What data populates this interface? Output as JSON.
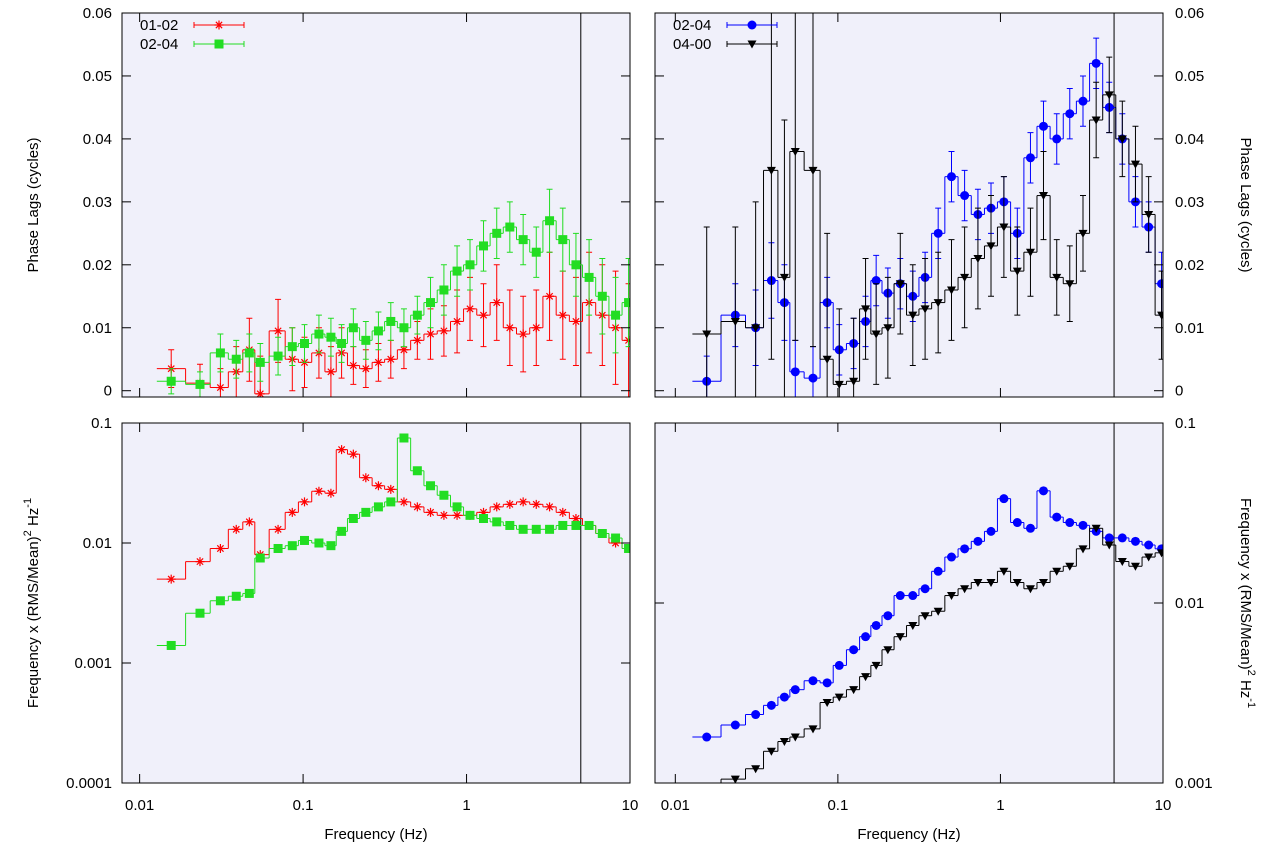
{
  "chart_data": [
    {
      "type": "line",
      "log_x": true,
      "log_y": false,
      "yaxis_side": "left",
      "legend": "upper left",
      "show_xtick_labels": false,
      "vline": 5,
      "ylabel": [
        "Phase Lags (cycles)"
      ],
      "xlim": [
        0.0078,
        10
      ],
      "ylim": [
        -0.001,
        0.06
      ],
      "xticks": [
        0.01,
        0.1,
        1,
        10
      ],
      "yticks": [
        0,
        0.01,
        0.02,
        0.03,
        0.04,
        0.05,
        0.06
      ],
      "x": [
        0.0156,
        0.0234,
        0.0312,
        0.039,
        0.0469,
        0.0547,
        0.0703,
        0.0859,
        0.102,
        0.125,
        0.148,
        0.172,
        0.203,
        0.242,
        0.289,
        0.344,
        0.414,
        0.5,
        0.602,
        0.727,
        0.875,
        1.05,
        1.27,
        1.53,
        1.84,
        2.22,
        2.67,
        3.22,
        3.88,
        4.67,
        5.62,
        6.77,
        8.16,
        9.8
      ],
      "series": [
        {
          "name": "01-02",
          "color": "#ff0000",
          "marker": "asterisk",
          "values": [
            0.0035,
            0.0012,
            0.0005,
            0.003,
            0.0065,
            -0.0005,
            0.0095,
            0.005,
            0.0045,
            0.006,
            0.003,
            0.006,
            0.004,
            0.0035,
            0.0045,
            0.005,
            0.0065,
            0.008,
            0.009,
            0.0095,
            0.011,
            0.013,
            0.012,
            0.014,
            0.01,
            0.009,
            0.01,
            0.015,
            0.012,
            0.011,
            0.014,
            0.012,
            0.01,
            0.008
          ],
          "errors": [
            0.003,
            0.003,
            0.003,
            0.004,
            0.005,
            0.006,
            0.005,
            0.005,
            0.004,
            0.004,
            0.004,
            0.004,
            0.003,
            0.003,
            0.003,
            0.003,
            0.003,
            0.003,
            0.004,
            0.004,
            0.005,
            0.005,
            0.005,
            0.006,
            0.006,
            0.006,
            0.006,
            0.007,
            0.007,
            0.007,
            0.008,
            0.008,
            0.009,
            0.009
          ]
        },
        {
          "name": "02-04",
          "color": "#22dd22",
          "marker": "square",
          "values": [
            0.0015,
            0.001,
            0.006,
            0.005,
            0.006,
            0.0045,
            0.0055,
            0.007,
            0.0075,
            0.009,
            0.0085,
            0.0075,
            0.01,
            0.008,
            0.0095,
            0.011,
            0.01,
            0.012,
            0.014,
            0.016,
            0.019,
            0.02,
            0.023,
            0.025,
            0.026,
            0.024,
            0.022,
            0.027,
            0.024,
            0.02,
            0.018,
            0.015,
            0.012,
            0.014
          ],
          "errors": [
            0.002,
            0.002,
            0.003,
            0.003,
            0.003,
            0.003,
            0.003,
            0.003,
            0.003,
            0.003,
            0.003,
            0.003,
            0.003,
            0.003,
            0.003,
            0.003,
            0.003,
            0.003,
            0.004,
            0.004,
            0.004,
            0.004,
            0.004,
            0.004,
            0.004,
            0.004,
            0.004,
            0.005,
            0.005,
            0.005,
            0.006,
            0.006,
            0.006,
            0.007
          ]
        }
      ]
    },
    {
      "type": "line",
      "log_x": true,
      "log_y": false,
      "yaxis_side": "right",
      "legend": "upper left",
      "show_xtick_labels": false,
      "vline": 5,
      "ylabel": [
        "Phase Lags (cycles)"
      ],
      "xlim": [
        0.0075,
        10
      ],
      "ylim": [
        -0.001,
        0.06
      ],
      "xticks": [
        0.01,
        0.1,
        1,
        10
      ],
      "yticks": [
        0,
        0.01,
        0.02,
        0.03,
        0.04,
        0.05,
        0.06
      ],
      "x": [
        0.0156,
        0.0234,
        0.0312,
        0.039,
        0.0469,
        0.0547,
        0.0703,
        0.0859,
        0.102,
        0.125,
        0.148,
        0.172,
        0.203,
        0.242,
        0.289,
        0.344,
        0.414,
        0.5,
        0.602,
        0.727,
        0.875,
        1.05,
        1.27,
        1.53,
        1.84,
        2.22,
        2.67,
        3.22,
        3.88,
        4.67,
        5.62,
        6.77,
        8.16,
        9.8
      ],
      "series": [
        {
          "name": "02-04",
          "color": "#0000ff",
          "marker": "circle",
          "values": [
            0.0015,
            0.012,
            0.01,
            0.0175,
            0.014,
            0.003,
            0.002,
            0.014,
            0.0065,
            0.0075,
            0.011,
            0.0175,
            0.0155,
            0.017,
            0.015,
            0.018,
            0.025,
            0.034,
            0.031,
            0.028,
            0.029,
            0.03,
            0.025,
            0.037,
            0.042,
            0.04,
            0.044,
            0.046,
            0.052,
            0.045,
            0.04,
            0.03,
            0.026,
            0.017
          ],
          "errors": [
            0.004,
            0.005,
            0.006,
            0.006,
            0.006,
            0.005,
            0.005,
            0.004,
            0.004,
            0.004,
            0.004,
            0.004,
            0.004,
            0.004,
            0.004,
            0.004,
            0.004,
            0.004,
            0.004,
            0.004,
            0.004,
            0.004,
            0.004,
            0.004,
            0.004,
            0.004,
            0.004,
            0.004,
            0.004,
            0.004,
            0.004,
            0.004,
            0.004,
            0.005
          ]
        },
        {
          "name": "04-00",
          "color": "#000000",
          "marker": "triangle-down",
          "values": [
            0.009,
            0.011,
            0.01,
            0.035,
            0.018,
            0.038,
            0.035,
            0.005,
            0.001,
            0.0015,
            0.013,
            0.009,
            0.01,
            0.017,
            0.012,
            0.013,
            0.014,
            0.016,
            0.018,
            0.021,
            0.023,
            0.026,
            0.019,
            0.022,
            0.031,
            0.018,
            0.017,
            0.025,
            0.043,
            0.047,
            0.04,
            0.036,
            0.028,
            0.012
          ],
          "errors": [
            0.017,
            0.015,
            0.02,
            0.03,
            0.025,
            0.03,
            0.028,
            0.02,
            0.012,
            0.01,
            0.008,
            0.008,
            0.008,
            0.008,
            0.008,
            0.008,
            0.008,
            0.008,
            0.008,
            0.008,
            0.008,
            0.008,
            0.007,
            0.007,
            0.007,
            0.006,
            0.006,
            0.006,
            0.006,
            0.006,
            0.006,
            0.006,
            0.006,
            0.007
          ]
        }
      ]
    },
    {
      "type": "line",
      "log_x": true,
      "log_y": true,
      "yaxis_side": "left",
      "show_xtick_labels": true,
      "vline": 5,
      "xlabel": "Frequency (Hz)",
      "ylabel": [
        "Frequency x (RMS/Mean)",
        "2",
        " Hz",
        "-1"
      ],
      "xlim": [
        0.0078,
        10
      ],
      "ylim": [
        0.0001,
        0.1
      ],
      "xticks": [
        0.01,
        0.1,
        1,
        10
      ],
      "yticks": [
        0.0001,
        0.001,
        0.01,
        0.1
      ],
      "x": [
        0.0156,
        0.0234,
        0.0312,
        0.039,
        0.0469,
        0.0547,
        0.0703,
        0.0859,
        0.102,
        0.125,
        0.148,
        0.172,
        0.203,
        0.242,
        0.289,
        0.344,
        0.414,
        0.5,
        0.602,
        0.727,
        0.875,
        1.05,
        1.27,
        1.53,
        1.84,
        2.22,
        2.67,
        3.22,
        3.88,
        4.67,
        5.62,
        6.77,
        8.16,
        9.8
      ],
      "series": [
        {
          "name": "01-02",
          "color": "#ff0000",
          "marker": "asterisk",
          "values": [
            0.005,
            0.007,
            0.009,
            0.013,
            0.015,
            0.008,
            0.013,
            0.018,
            0.022,
            0.027,
            0.026,
            0.06,
            0.055,
            0.035,
            0.03,
            0.028,
            0.022,
            0.02,
            0.018,
            0.017,
            0.017,
            0.017,
            0.018,
            0.02,
            0.021,
            0.022,
            0.021,
            0.02,
            0.018,
            0.016,
            0.014,
            0.012,
            0.01,
            0.009
          ]
        },
        {
          "name": "02-04",
          "color": "#22dd22",
          "marker": "square",
          "values": [
            0.0014,
            0.0026,
            0.0033,
            0.0036,
            0.0038,
            0.0075,
            0.009,
            0.0095,
            0.0105,
            0.01,
            0.0095,
            0.0125,
            0.016,
            0.018,
            0.02,
            0.022,
            0.075,
            0.04,
            0.03,
            0.025,
            0.02,
            0.017,
            0.016,
            0.015,
            0.014,
            0.013,
            0.013,
            0.013,
            0.014,
            0.014,
            0.014,
            0.012,
            0.011,
            0.009
          ]
        }
      ]
    },
    {
      "type": "line",
      "log_x": true,
      "log_y": true,
      "yaxis_side": "right",
      "show_xtick_labels": true,
      "vline": 5,
      "xlabel": "Frequency (Hz)",
      "ylabel": [
        "Frequency x (RMS/Mean)",
        "2",
        " Hz",
        "-1"
      ],
      "xlim": [
        0.0075,
        10
      ],
      "ylim": [
        0.001,
        0.1
      ],
      "xticks": [
        0.01,
        0.1,
        1,
        10
      ],
      "yticks": [
        0.001,
        0.01,
        0.1
      ],
      "x": [
        0.0156,
        0.0234,
        0.0312,
        0.039,
        0.0469,
        0.0547,
        0.0703,
        0.0859,
        0.102,
        0.125,
        0.148,
        0.172,
        0.203,
        0.242,
        0.289,
        0.344,
        0.414,
        0.5,
        0.602,
        0.727,
        0.875,
        1.05,
        1.27,
        1.53,
        1.84,
        2.22,
        2.67,
        3.22,
        3.88,
        4.67,
        5.62,
        6.77,
        8.16,
        9.8
      ],
      "series": [
        {
          "name": "02-04",
          "color": "#0000ff",
          "marker": "circle",
          "values": [
            0.0018,
            0.0021,
            0.0024,
            0.0027,
            0.003,
            0.0033,
            0.0037,
            0.0036,
            0.0045,
            0.0055,
            0.0065,
            0.0075,
            0.0085,
            0.011,
            0.011,
            0.012,
            0.015,
            0.018,
            0.02,
            0.022,
            0.025,
            0.038,
            0.028,
            0.026,
            0.042,
            0.03,
            0.028,
            0.027,
            0.025,
            0.023,
            0.023,
            0.022,
            0.021,
            0.02
          ]
        },
        {
          "name": "04-00",
          "color": "#000000",
          "marker": "triangle-down",
          "values": [
            0.0007,
            0.00105,
            0.0012,
            0.0015,
            0.0017,
            0.0018,
            0.002,
            0.0028,
            0.003,
            0.0033,
            0.0039,
            0.0045,
            0.0055,
            0.0065,
            0.0075,
            0.0085,
            0.009,
            0.011,
            0.012,
            0.013,
            0.013,
            0.015,
            0.013,
            0.012,
            0.013,
            0.015,
            0.016,
            0.02,
            0.026,
            0.021,
            0.017,
            0.016,
            0.018,
            0.019
          ]
        }
      ]
    }
  ]
}
